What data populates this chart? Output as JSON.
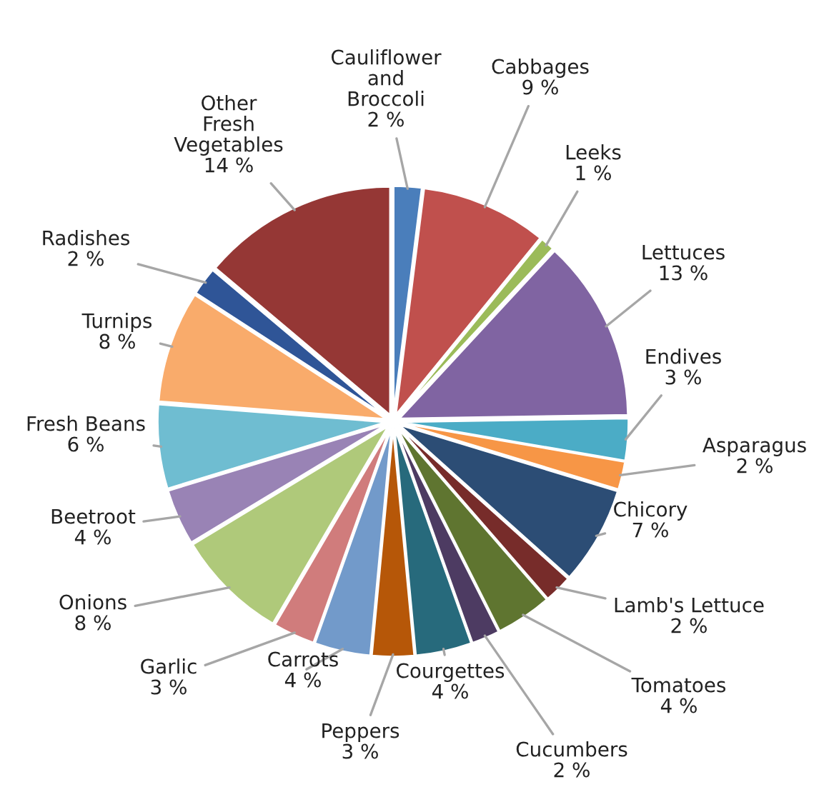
{
  "chart_data": {
    "type": "pie",
    "categories": [
      "Cauliflower and Broccoli",
      "Cabbages",
      "Leeks",
      "Lettuces",
      "Endives",
      "Asparagus",
      "Chicory",
      "Lamb's Lettuce",
      "Tomatoes",
      "Cucumbers",
      "Courgettes",
      "Peppers",
      "Carrots",
      "Garlic",
      "Onions",
      "Beetroot",
      "Fresh Beans",
      "Turnips",
      "Radishes",
      "Other Fresh Vegetables"
    ],
    "values": [
      2,
      9,
      1,
      13,
      3,
      2,
      7,
      2,
      4,
      2,
      4,
      3,
      4,
      3,
      8,
      4,
      6,
      8,
      2,
      14
    ],
    "value_labels": [
      "2 %",
      "9 %",
      "1 %",
      "13 %",
      "3 %",
      "2 %",
      "7 %",
      "2 %",
      "4 %",
      "2 %",
      "4 %",
      "3 %",
      "4 %",
      "3 %",
      "8 %",
      "4 %",
      "6 %",
      "8 %",
      "2 %",
      "14 %"
    ],
    "colors": [
      "#4a7ebb",
      "#c0504d",
      "#9bbb59",
      "#8064a2",
      "#4bacc6",
      "#f79646",
      "#2c4d75",
      "#772c2a",
      "#5f7530",
      "#4d3b62",
      "#276a7c",
      "#b65708",
      "#729aca",
      "#d07c7c",
      "#afc97a",
      "#9983b5",
      "#6fbdd1",
      "#f9ab6b",
      "#2f5597",
      "#953735"
    ]
  }
}
